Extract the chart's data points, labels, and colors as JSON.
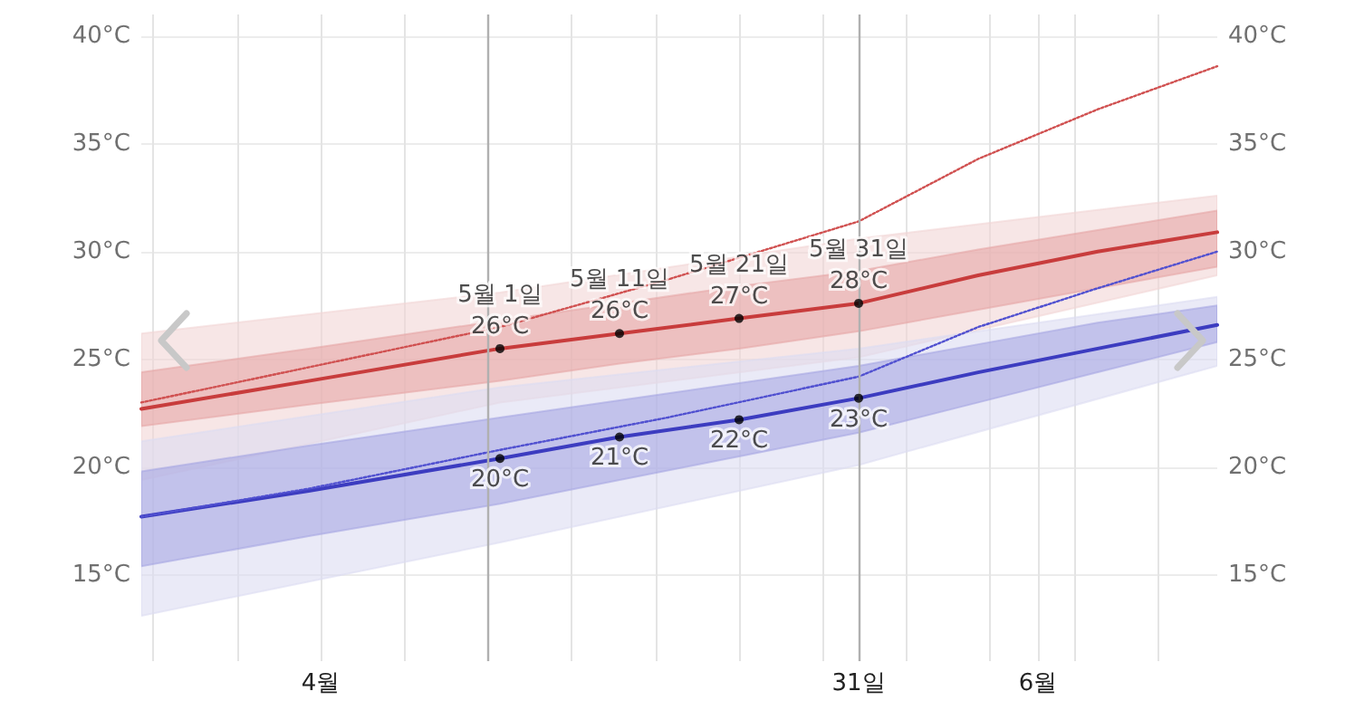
{
  "chart_data": {
    "type": "line",
    "xlim": [
      "--04-01",
      "--06-30"
    ],
    "xticks": [
      {
        "value": "--04-02",
        "label": null
      },
      {
        "value": "--04-09",
        "label": null
      },
      {
        "value": "--04-16",
        "label": "4월"
      },
      {
        "value": "--04-23",
        "label": null
      },
      {
        "value": "--04-30",
        "label": null
      },
      {
        "value": "--05-07",
        "label": null
      },
      {
        "value": "--05-14",
        "label": null
      },
      {
        "value": "--05-21",
        "label": null
      },
      {
        "value": "--05-28",
        "label": null
      },
      {
        "value": "--06-04",
        "label": null
      },
      {
        "value": "--06-11",
        "label": null
      },
      {
        "value": "--06-15",
        "label": "6월"
      },
      {
        "value": "--06-18",
        "label": null
      },
      {
        "value": "--06-25",
        "label": null
      }
    ],
    "ylim": [
      11,
      41
    ],
    "yticks": [
      {
        "value": 15,
        "label": "15°C"
      },
      {
        "value": 20,
        "label": "20°C"
      },
      {
        "value": 25,
        "label": "25°C"
      },
      {
        "value": 30,
        "label": "30°C"
      },
      {
        "value": 35,
        "label": "35°C"
      },
      {
        "value": 40,
        "label": "40°C"
      }
    ],
    "y2lim": [
      11,
      41
    ],
    "y2ticks": [
      {
        "value": 15,
        "label": "15°C"
      },
      {
        "value": 20,
        "label": "20°C"
      },
      {
        "value": 25,
        "label": "25°C"
      },
      {
        "value": 30,
        "label": "30°C"
      },
      {
        "value": 35,
        "label": "35°C"
      },
      {
        "value": 40,
        "label": "40°C"
      }
    ],
    "grid": true,
    "ref_lines": [
      {
        "axis": "x",
        "value": "--04-30",
        "label": null,
        "color": "#b0b0b0"
      },
      {
        "axis": "x",
        "value": "--05-31",
        "label": "31일",
        "color": "#b0b0b0"
      }
    ],
    "series": [
      {
        "type": "area",
        "color": "#f2d6d6",
        "x": [
          "--04-01",
          "--05-01",
          "--05-31",
          "--06-30"
        ],
        "values": [
          null,
          null,
          null,
          null
        ],
        "lower": [
          19.4,
          23.0,
          25.1,
          28.9
        ],
        "upper": [
          26.2,
          28.1,
          30.6,
          32.6
        ]
      },
      {
        "type": "area",
        "color": "#dcdcf2",
        "x": [
          "--04-01",
          "--05-01",
          "--05-31",
          "--06-30"
        ],
        "values": [
          null,
          null,
          null,
          null
        ],
        "lower": [
          13.1,
          16.5,
          20.1,
          24.7
        ],
        "upper": [
          21.2,
          23.7,
          25.5,
          27.9
        ]
      },
      {
        "type": "line",
        "color": "#c83c3c",
        "x": [
          "--04-01",
          "--04-15",
          "--05-01",
          "--05-11",
          "--05-21",
          "--05-31",
          "--06-10",
          "--06-20",
          "--06-30"
        ],
        "values": [
          22.7,
          24.0,
          25.5,
          26.2,
          26.9,
          27.6,
          28.9,
          30.0,
          30.9
        ],
        "lower": [
          21.9,
          22.9,
          24.0,
          24.8,
          25.5,
          26.3,
          27.3,
          28.3,
          29.3
        ],
        "upper": [
          24.4,
          25.5,
          26.8,
          27.6,
          28.4,
          29.1,
          30.1,
          31.0,
          31.9
        ]
      },
      {
        "type": "line",
        "color": "#3c3cc0",
        "x": [
          "--04-01",
          "--04-15",
          "--05-01",
          "--05-11",
          "--05-21",
          "--05-31",
          "--06-10",
          "--06-20",
          "--06-30"
        ],
        "values": [
          17.7,
          18.9,
          20.4,
          21.4,
          22.2,
          23.2,
          24.4,
          25.5,
          26.6
        ],
        "lower": [
          15.4,
          16.8,
          18.3,
          19.4,
          20.5,
          21.6,
          23.0,
          24.4,
          25.8
        ],
        "upper": [
          19.8,
          21.0,
          22.3,
          23.1,
          23.9,
          24.7,
          25.7,
          26.7,
          27.5
        ]
      },
      {
        "type": "line",
        "line_style": "dotted",
        "color": "#d05050",
        "x": [
          "--04-01",
          "--05-01",
          "--05-15",
          "--05-31",
          "--06-10",
          "--06-20",
          "--06-30"
        ],
        "values": [
          23.0,
          26.5,
          28.7,
          31.4,
          34.3,
          36.6,
          38.6
        ]
      },
      {
        "type": "line",
        "line_style": "dotted",
        "color": "#5050d0",
        "x": [
          "--04-01",
          "--04-15",
          "--05-01",
          "--05-15",
          "--05-31",
          "--06-10",
          "--06-20",
          "--06-30"
        ],
        "values": [
          17.7,
          19.0,
          20.8,
          22.3,
          24.2,
          26.5,
          28.3,
          30.0
        ]
      },
      {
        "type": "scatter",
        "color": "#000000",
        "x": [
          "--05-01",
          "--05-11",
          "--05-21",
          "--05-31"
        ],
        "values": [
          25.5,
          26.2,
          26.9,
          27.6
        ],
        "value_labels": [
          "26°C",
          "26°C",
          "27°C",
          "28°C"
        ]
      },
      {
        "type": "scatter",
        "color": "#000000",
        "x": [
          "--05-01",
          "--05-11",
          "--05-21",
          "--05-31"
        ],
        "values": [
          20.4,
          21.4,
          22.2,
          23.2
        ],
        "value_labels": [
          "20°C",
          "21°C",
          "22°C",
          "23°C"
        ]
      }
    ],
    "annotations": [
      {
        "text": "5월 1일",
        "x": "--05-01",
        "y": 25.5
      },
      {
        "text": "5월 11일",
        "x": "--05-11",
        "y": 26.2
      },
      {
        "text": "5월 21일",
        "x": "--05-21",
        "y": 26.9
      },
      {
        "text": "5월 31일",
        "x": "--05-31",
        "y": 27.6
      }
    ]
  }
}
